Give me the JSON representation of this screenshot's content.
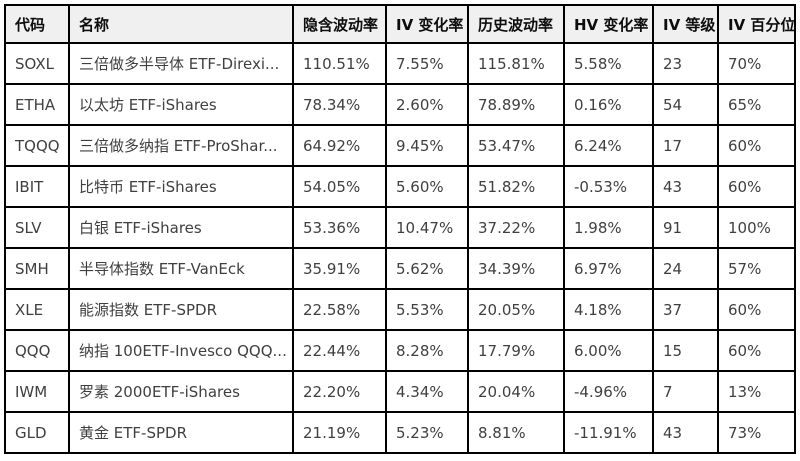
{
  "colors": {
    "border": "#000000",
    "header_bg": "#f0f0f0",
    "header_text": "#0d0d0d",
    "cell_text": "#3f3f3f"
  },
  "table": {
    "headers": [
      {
        "key": "code",
        "label": "代码"
      },
      {
        "key": "name",
        "label": "名称"
      },
      {
        "key": "implied-volatility",
        "label": "隐含波动率"
      },
      {
        "key": "iv-change",
        "label": "IV 变化率"
      },
      {
        "key": "historical-volatility",
        "label": "历史波动率"
      },
      {
        "key": "hv-change",
        "label": "HV 变化率"
      },
      {
        "key": "iv-rank",
        "label": "IV 等级"
      },
      {
        "key": "iv-percentile",
        "label": "IV 百分位"
      }
    ],
    "rows": [
      [
        "SOXL",
        "三倍做多半导体 ETF-Direxi...",
        "110.51%",
        "7.55%",
        "115.81%",
        "5.58%",
        "23",
        "70%"
      ],
      [
        "ETHA",
        "以太坊 ETF-iShares",
        "78.34%",
        "2.60%",
        "78.89%",
        "0.16%",
        "54",
        "65%"
      ],
      [
        "TQQQ",
        "三倍做多纳指 ETF-ProShar...",
        "64.92%",
        "9.45%",
        "53.47%",
        "6.24%",
        "17",
        "60%"
      ],
      [
        "IBIT",
        "比特币 ETF-iShares",
        "54.05%",
        "5.60%",
        "51.82%",
        "-0.53%",
        "43",
        "60%"
      ],
      [
        "SLV",
        "白银 ETF-iShares",
        "53.36%",
        "10.47%",
        "37.22%",
        "1.98%",
        "91",
        "100%"
      ],
      [
        "SMH",
        "半导体指数 ETF-VanEck",
        "35.91%",
        "5.62%",
        "34.39%",
        "6.97%",
        "24",
        "57%"
      ],
      [
        "XLE",
        "能源指数 ETF-SPDR",
        "22.58%",
        "5.53%",
        "20.05%",
        "4.18%",
        "37",
        "60%"
      ],
      [
        "QQQ",
        "纳指 100ETF-Invesco QQQ...",
        "22.44%",
        "8.28%",
        "17.79%",
        "6.00%",
        "15",
        "60%"
      ],
      [
        "IWM",
        "罗素 2000ETF-iShares",
        "22.20%",
        "4.34%",
        "20.04%",
        "-4.96%",
        "7",
        "13%"
      ],
      [
        "GLD",
        "黄金 ETF-SPDR",
        "21.19%",
        "5.23%",
        "8.81%",
        "-11.91%",
        "43",
        "73%"
      ]
    ]
  }
}
